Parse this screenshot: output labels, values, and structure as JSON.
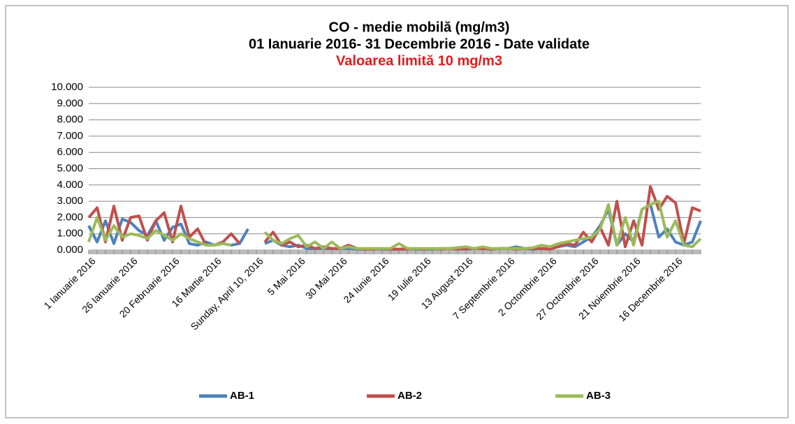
{
  "chart_data": {
    "type": "line",
    "title": "CO - medie mobilă (mg/m3)",
    "subtitle": "01 Ianuarie 2016-  31 Decembrie 2016 - Date validate",
    "annotation": "Valoarea limită 10 mg/m3",
    "annotation_color": "#e31a1c",
    "categories": [
      "1 Ianuarie 2016",
      null,
      null,
      null,
      null,
      "26 Ianuarie 2016",
      null,
      null,
      null,
      null,
      "20 Februarie 2016",
      null,
      null,
      null,
      null,
      "16 Martie 2016",
      null,
      null,
      null,
      null,
      "Sunday, April 10, 2016",
      null,
      null,
      null,
      null,
      "5 Mai 2016",
      null,
      null,
      null,
      null,
      "30 Mai 2016",
      null,
      null,
      null,
      null,
      "24 Iunie 2016",
      null,
      null,
      null,
      null,
      "19 Iulie 2016",
      null,
      null,
      null,
      null,
      "13 August 2016",
      null,
      null,
      null,
      null,
      "7 Septembrie 2016",
      null,
      null,
      null,
      null,
      "2 Octombrie 2016",
      null,
      null,
      null,
      null,
      "27 Octombrie 2016",
      null,
      null,
      null,
      null,
      "21 Noiembrie 2016",
      null,
      null,
      null,
      null,
      "16 Decembrie 2016",
      null,
      null,
      null
    ],
    "series": [
      {
        "name": "AB-1",
        "color": "#4f81bd",
        "values": [
          1.5,
          0.5,
          1.8,
          0.4,
          1.9,
          1.7,
          1.2,
          0.9,
          1.8,
          0.6,
          1.4,
          1.6,
          0.4,
          0.3,
          0.5,
          0.3,
          0.4,
          0.3,
          0.4,
          1.3,
          null,
          0.4,
          0.6,
          0.3,
          0.2,
          0.3,
          0.1,
          0.1,
          0.1,
          0.1,
          0.1,
          0.1,
          0.05,
          0.05,
          0.1,
          0.05,
          0.05,
          0.05,
          0.1,
          0.05,
          0.05,
          0.05,
          0.1,
          0.1,
          0.1,
          0.05,
          0.1,
          0.15,
          0.05,
          0.1,
          0.1,
          0.2,
          0.1,
          0.05,
          0.1,
          0.1,
          0.2,
          0.3,
          0.2,
          0.5,
          0.8,
          1.5,
          2.5,
          0.3,
          1.0,
          0.5,
          2.5,
          2.8,
          0.8,
          1.3,
          0.5,
          0.3,
          0.5,
          1.8
        ]
      },
      {
        "name": "AB-2",
        "color": "#c0504d",
        "values": [
          2.0,
          2.6,
          0.5,
          2.7,
          0.6,
          2.0,
          2.1,
          0.6,
          1.8,
          2.3,
          0.5,
          2.7,
          0.8,
          1.3,
          0.3,
          0.3,
          0.5,
          1.0,
          0.4,
          null,
          null,
          0.5,
          1.1,
          0.3,
          0.5,
          0.2,
          0.3,
          0.1,
          0.2,
          0.1,
          0.1,
          0.3,
          0.1,
          0.05,
          0.05,
          0.1,
          0.05,
          0.05,
          0.05,
          0.1,
          0.05,
          0.1,
          0.05,
          0.1,
          0.05,
          0.1,
          0.1,
          0.1,
          0.05,
          0.1,
          0.1,
          0.05,
          0.1,
          0.1,
          0.1,
          0.05,
          0.2,
          0.4,
          0.3,
          1.1,
          0.5,
          1.4,
          0.3,
          3.0,
          0.2,
          1.8,
          0.3,
          3.9,
          2.5,
          3.3,
          2.9,
          0.4,
          2.6,
          2.4
        ]
      },
      {
        "name": "AB-3",
        "color": "#9bbb59",
        "values": [
          0.5,
          2.0,
          0.6,
          1.5,
          0.8,
          1.0,
          0.9,
          0.7,
          1.2,
          0.9,
          0.6,
          1.0,
          0.7,
          0.5,
          0.3,
          0.3,
          0.4,
          0.3,
          null,
          null,
          null,
          1.1,
          0.6,
          0.4,
          0.7,
          0.9,
          0.2,
          0.5,
          0.1,
          0.5,
          0.1,
          0.2,
          0.1,
          0.1,
          0.1,
          0.1,
          0.1,
          0.4,
          0.1,
          0.1,
          0.1,
          0.1,
          0.1,
          0.1,
          0.15,
          0.2,
          0.1,
          0.2,
          0.1,
          0.1,
          0.1,
          0.1,
          0.1,
          0.15,
          0.3,
          0.2,
          0.4,
          0.5,
          0.6,
          0.7,
          0.8,
          1.3,
          2.8,
          0.3,
          2.0,
          0.3,
          2.5,
          2.8,
          3.0,
          0.8,
          1.8,
          0.3,
          0.2,
          0.7
        ]
      }
    ],
    "ylim": [
      0,
      10
    ],
    "yticks": [
      {
        "value": 0,
        "label": "0.000"
      },
      {
        "value": 1,
        "label": "1.000"
      },
      {
        "value": 2,
        "label": "2.000"
      },
      {
        "value": 3,
        "label": "3.000"
      },
      {
        "value": 4,
        "label": "4.000"
      },
      {
        "value": 5,
        "label": "5.000"
      },
      {
        "value": 6,
        "label": "6.000"
      },
      {
        "value": 7,
        "label": "7.000"
      },
      {
        "value": 8,
        "label": "8.000"
      },
      {
        "value": 9,
        "label": "9.000"
      },
      {
        "value": 10,
        "label": "10.000"
      }
    ],
    "grid": true,
    "legend": "bottom"
  }
}
